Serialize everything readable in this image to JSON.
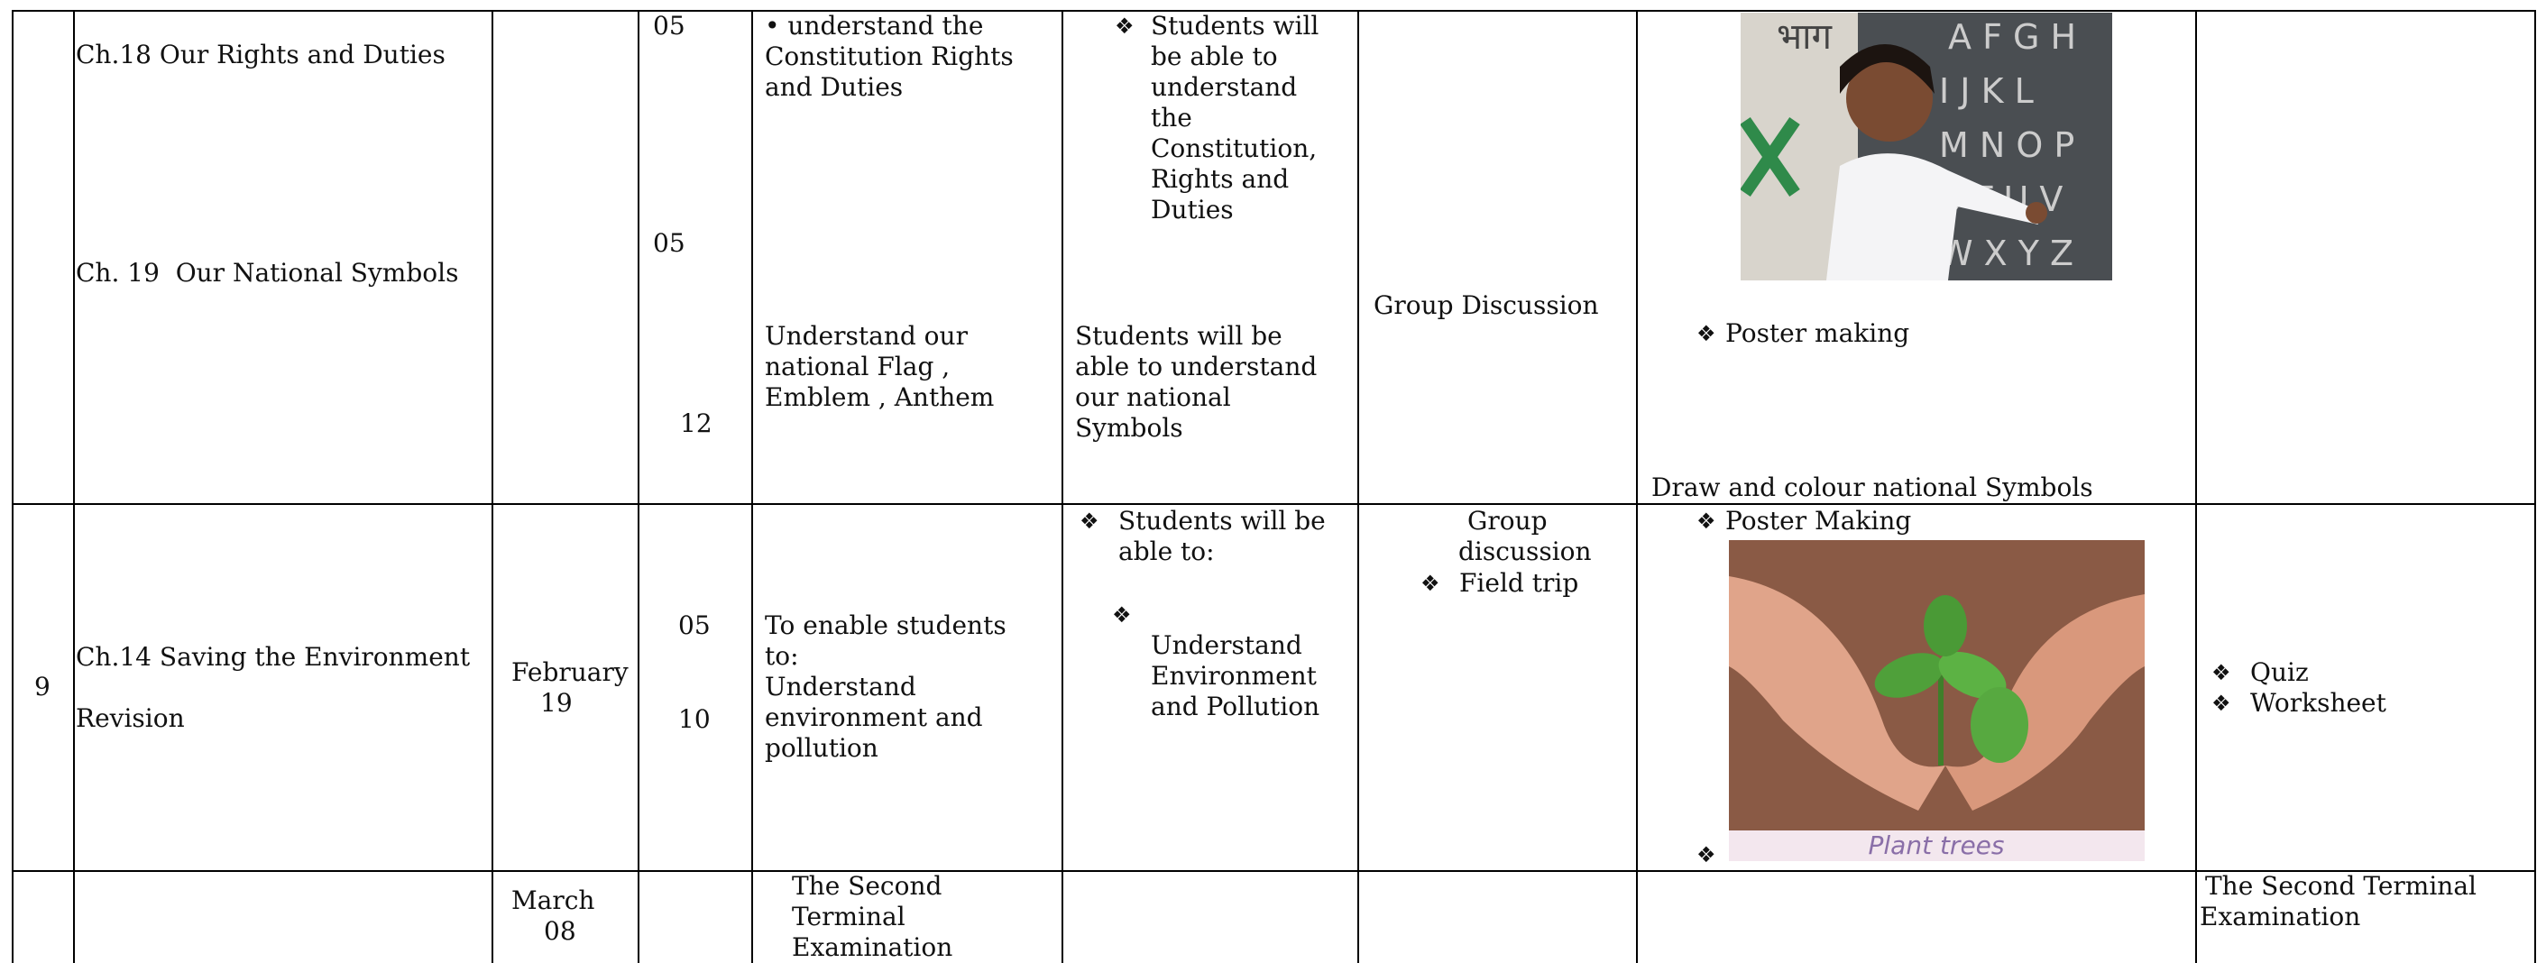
{
  "table": {
    "rows": [
      {
        "chapters": [
          "Ch.18 Our Rights and Duties",
          "Ch. 19  Our National Symbols"
        ],
        "periods": [
          "05",
          "05",
          "12"
        ],
        "objectives": [
          [
            "• understand the",
            "Constitution Rights",
            "and Duties"
          ],
          [
            "Understand our",
            "national Flag ,",
            "Emblem , Anthem"
          ]
        ],
        "outcomes": [
          [
            "Students will",
            "be able to",
            "understand",
            "the",
            "Constitution,",
            "Rights and",
            "Duties"
          ],
          [
            "Students will be",
            "able to understand",
            "our national",
            "Symbols"
          ]
        ],
        "method": [
          "Group Discussion"
        ],
        "activities": [
          "Poster making",
          "Draw and colour national Symbols"
        ]
      },
      {
        "number": "9",
        "chapters": [
          "Ch.14 Saving the Environment",
          "Revision"
        ],
        "date": [
          "February",
          "19"
        ],
        "periods": [
          "05",
          "10"
        ],
        "objectives": [
          [
            "To enable students",
            "to:",
            "Understand",
            "environment and",
            "pollution"
          ]
        ],
        "outcomes": [
          [
            "Students will be",
            "able to:"
          ],
          [
            "Understand",
            "Environment",
            "and Pollution"
          ]
        ],
        "method": [
          "Group",
          "discussion",
          "Field trip"
        ],
        "activities": [
          "Poster Making"
        ],
        "image_caption": "Plant trees",
        "assessment": [
          "Quiz",
          "Worksheet"
        ]
      },
      {
        "date": [
          "March",
          "08"
        ],
        "objectives": [
          [
            "The Second",
            "Terminal",
            "Examination"
          ]
        ],
        "assessment": [
          "The Second Terminal",
          "Examination"
        ]
      }
    ]
  }
}
